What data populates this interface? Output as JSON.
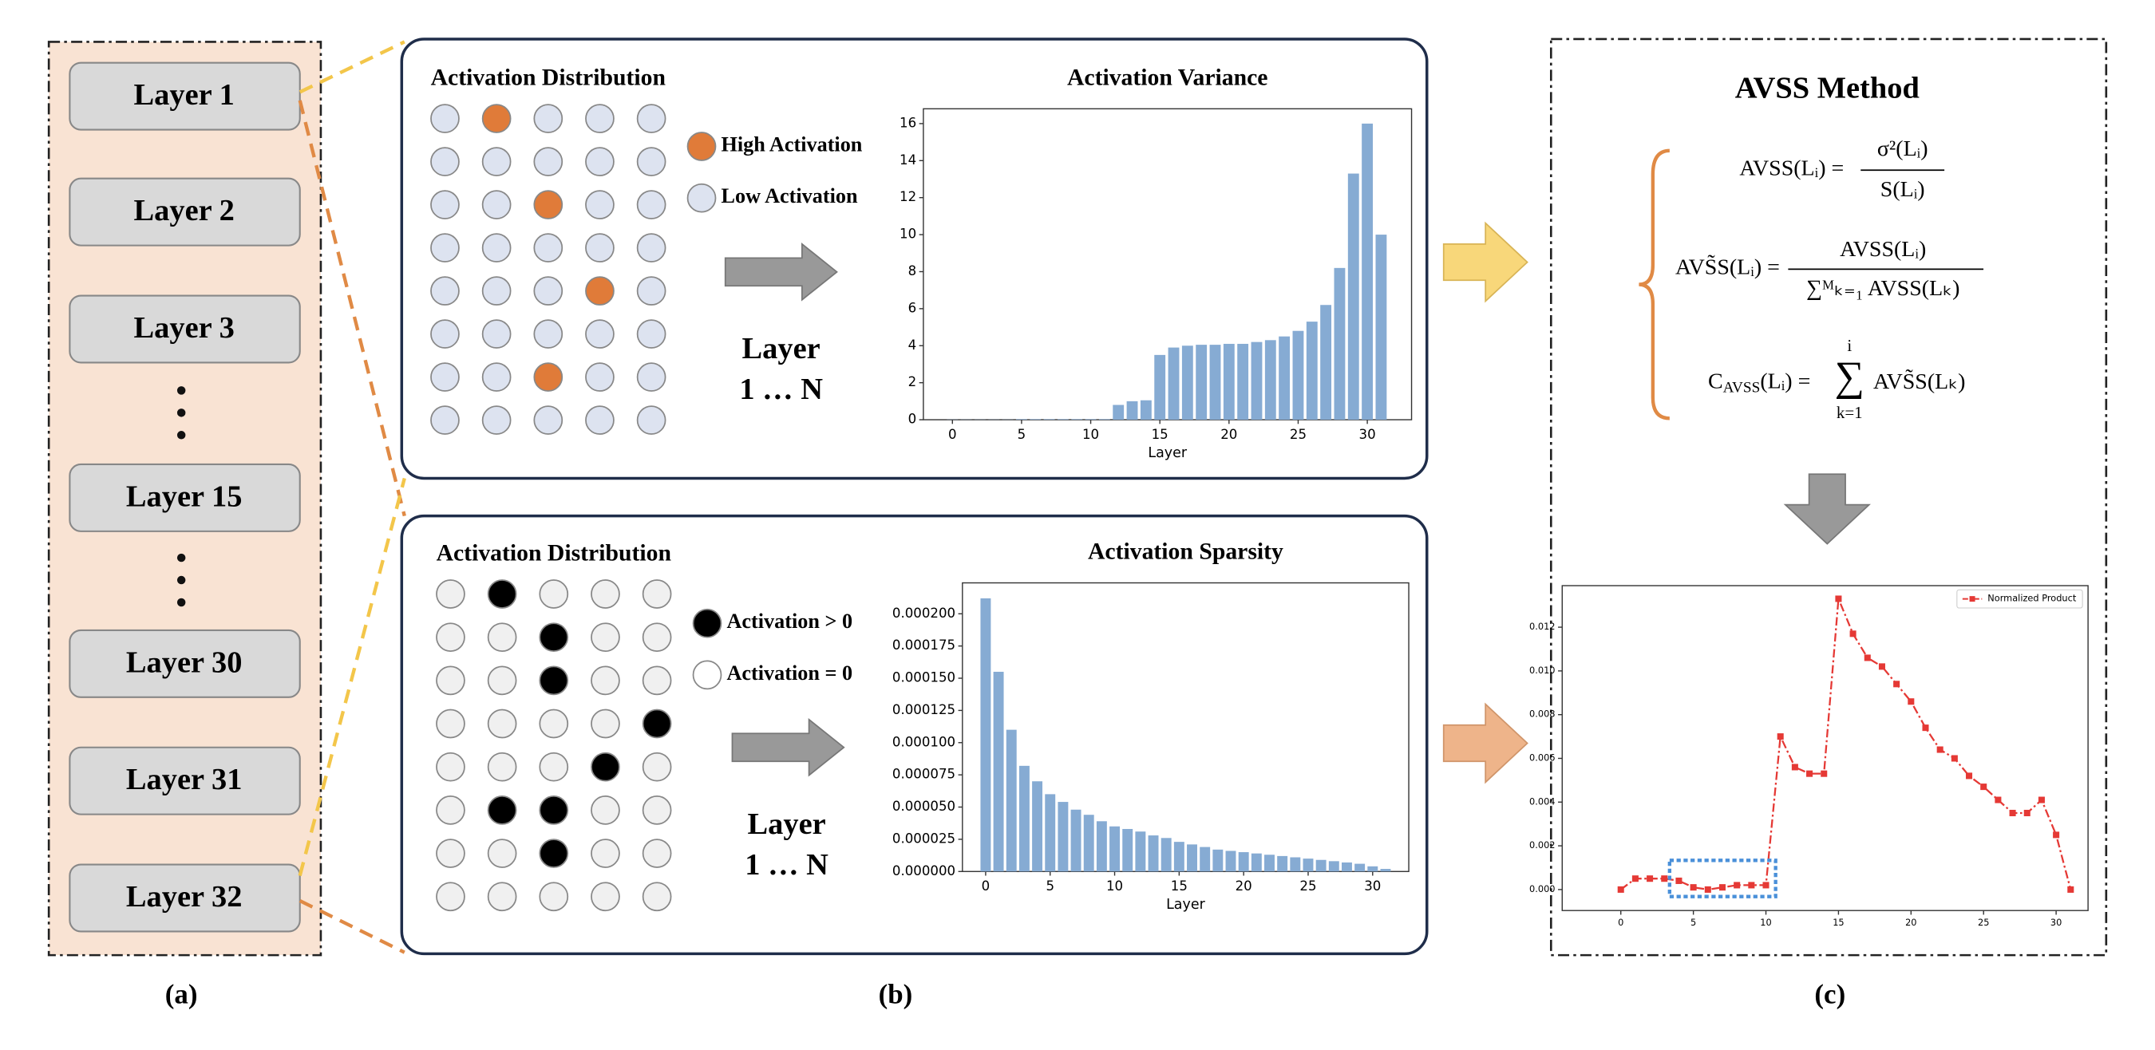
{
  "panel_labels": [
    "(a)",
    "(b)",
    "(c)"
  ],
  "layers": [
    "Layer 1",
    "Layer 2",
    "Layer 3",
    "Layer 15",
    "Layer 30",
    "Layer 31",
    "Layer 32"
  ],
  "variance_panel": {
    "title": "Activation Distribution",
    "legend": [
      "High Activation",
      "Low Activation"
    ],
    "arrow_text": [
      "Layer",
      "1 … N"
    ]
  },
  "sparsity_panel": {
    "title": "Activation Distribution",
    "legend": [
      "Activation > 0",
      "Activation = 0"
    ],
    "arrow_text": [
      "Layer",
      "1 … N"
    ]
  },
  "avss": {
    "title": "AVSS Method",
    "formula_1": {
      "lhs": "AVSS(Lᵢ) =",
      "numerator": "σ²(Lᵢ)",
      "denominator": "S(Lᵢ)"
    },
    "formula_2": {
      "lhs": "AVS̃S(Lᵢ) =",
      "numerator": "AVSS(Lᵢ)",
      "denominator": "∑ᴹₖ₌₁ AVSS(Lₖ)"
    },
    "formula_3": {
      "lhs": "C",
      "lhs_sub": "AVSS",
      "lhs_rest": "(Lᵢ) =",
      "sum": "∑",
      "sum_upper": "i",
      "sum_lower": "k=1",
      "body": "AVS̃S(Lₖ)"
    }
  },
  "chart_data": [
    {
      "type": "bar",
      "title": "Activation Variance",
      "xlabel": "Layer",
      "x": [
        0,
        1,
        2,
        3,
        4,
        5,
        6,
        7,
        8,
        9,
        10,
        11,
        12,
        13,
        14,
        15,
        16,
        17,
        18,
        19,
        20,
        21,
        22,
        23,
        24,
        25,
        26,
        27,
        28,
        29,
        30,
        31
      ],
      "values": [
        0.01,
        0.01,
        0.01,
        0.01,
        0.01,
        0.03,
        0.03,
        0.03,
        0.03,
        0.03,
        0.03,
        0.03,
        0.8,
        1.0,
        1.05,
        3.5,
        3.9,
        4.0,
        4.05,
        4.05,
        4.1,
        4.1,
        4.2,
        4.3,
        4.5,
        4.8,
        5.3,
        6.2,
        8.2,
        13.3,
        16.0,
        10.0
      ],
      "color": "#86abd3",
      "xlim": [
        -2.1,
        33.2
      ],
      "ylim": [
        0,
        16.8
      ],
      "xticks": [
        0,
        5,
        10,
        15,
        20,
        25,
        30
      ],
      "yticks": [
        0,
        2,
        4,
        6,
        8,
        10,
        12,
        14,
        16
      ]
    },
    {
      "type": "bar",
      "title": "Activation Sparsity",
      "xlabel": "Layer",
      "x": [
        0,
        1,
        2,
        3,
        4,
        5,
        6,
        7,
        8,
        9,
        10,
        11,
        12,
        13,
        14,
        15,
        16,
        17,
        18,
        19,
        20,
        21,
        22,
        23,
        24,
        25,
        26,
        27,
        28,
        29,
        30,
        31
      ],
      "values": [
        0.000212,
        0.000155,
        0.00011,
        8.2e-05,
        7e-05,
        6e-05,
        5.4e-05,
        4.8e-05,
        4.4e-05,
        3.9e-05,
        3.5e-05,
        3.3e-05,
        3.1e-05,
        2.8e-05,
        2.6e-05,
        2.3e-05,
        2.1e-05,
        1.9e-05,
        1.7e-05,
        1.6e-05,
        1.5e-05,
        1.4e-05,
        1.3e-05,
        1.2e-05,
        1.1e-05,
        1e-05,
        9e-06,
        8e-06,
        7e-06,
        6e-06,
        4e-06,
        2e-06
      ],
      "color": "#86abd3",
      "xlim": [
        -1.8,
        32.8
      ],
      "ylim": [
        0,
        0.000224
      ],
      "xticks": [
        0,
        5,
        10,
        15,
        20,
        25,
        30
      ],
      "yticks": [
        {
          "value": 0,
          "label": "0.000000"
        },
        {
          "value": 2.5e-05,
          "label": "0.000025"
        },
        {
          "value": 5e-05,
          "label": "0.000050"
        },
        {
          "value": 7.5e-05,
          "label": "0.000075"
        },
        {
          "value": 0.0001,
          "label": "0.000100"
        },
        {
          "value": 0.000125,
          "label": "0.000125"
        },
        {
          "value": 0.00015,
          "label": "0.000150"
        },
        {
          "value": 0.000175,
          "label": "0.000175"
        },
        {
          "value": 0.0002,
          "label": "0.000200"
        }
      ]
    },
    {
      "type": "line",
      "x": [
        0,
        1,
        2,
        3,
        4,
        5,
        6,
        7,
        8,
        9,
        10,
        11,
        12,
        13,
        14,
        15,
        16,
        17,
        18,
        19,
        20,
        21,
        22,
        23,
        24,
        25,
        26,
        27,
        28,
        29,
        30,
        31
      ],
      "series": [
        {
          "name": "Normalized Product",
          "color": "#e53935",
          "values": [
            0,
            0.0005,
            0.0005,
            0.0005,
            0.0004,
            0.0001,
            0,
            0.0001,
            0.0002,
            0.0002,
            0.0002,
            0.007,
            0.0056,
            0.0053,
            0.0053,
            0.0133,
            0.0117,
            0.0106,
            0.0102,
            0.0094,
            0.0086,
            0.0074,
            0.0064,
            0.006,
            0.0052,
            0.0047,
            0.0041,
            0.0035,
            0.0035,
            0.0041,
            0.0025,
            0
          ]
        }
      ],
      "xlim": [
        -4.04,
        32.2
      ],
      "ylim": [
        -0.00096,
        0.0139
      ],
      "xticks": [
        0,
        5,
        10,
        15,
        20,
        25,
        30
      ],
      "yticks": [
        {
          "value": 0,
          "label": "0.000"
        },
        {
          "value": 0.002,
          "label": "0.002"
        },
        {
          "value": 0.004,
          "label": "0.004"
        },
        {
          "value": 0.006,
          "label": "0.006"
        },
        {
          "value": 0.008,
          "label": "0.008"
        },
        {
          "value": 0.01,
          "label": "0.010"
        },
        {
          "value": 0.012,
          "label": "0.012"
        }
      ],
      "legend": "upper right"
    }
  ]
}
